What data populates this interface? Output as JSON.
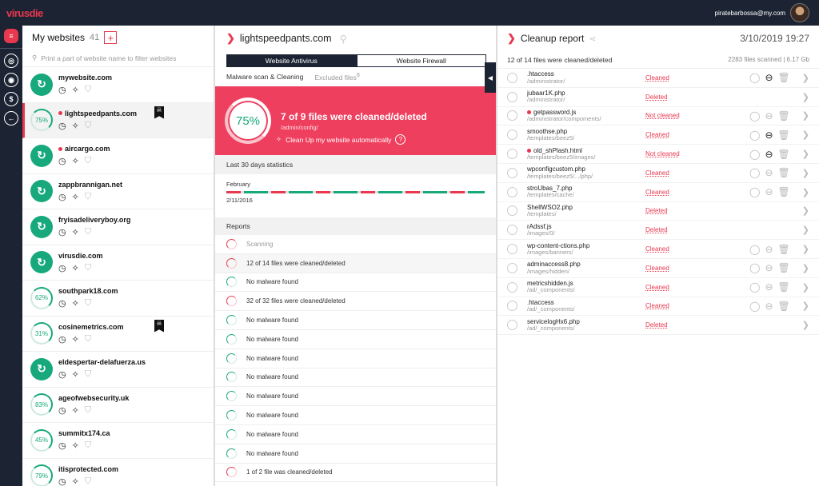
{
  "app": {
    "logo": "virusdie",
    "user_email": "piratebarbossa@my.com"
  },
  "rail": [
    {
      "name": "logo-mark-icon",
      "glyph": "≡"
    },
    {
      "name": "sites-icon",
      "glyph": "◎"
    },
    {
      "name": "target-icon",
      "glyph": "◉"
    },
    {
      "name": "billing-icon",
      "glyph": "$"
    },
    {
      "name": "logout-icon",
      "glyph": "←"
    }
  ],
  "sidebar": {
    "title": "My websites",
    "count": "41",
    "add": "+",
    "filter_placeholder": "Print a part of website name to filter websites",
    "sites": [
      {
        "name": "mywebsite.com",
        "status": "ok"
      },
      {
        "name": "lightspeedpants.com",
        "status": "pct",
        "pct": "75%",
        "dot": true,
        "flag": true,
        "selected": true
      },
      {
        "name": "aircargo.com",
        "status": "ok",
        "dot": true
      },
      {
        "name": "zappbrannigan.net",
        "status": "ok"
      },
      {
        "name": "fryisadeliveryboy.org",
        "status": "ok"
      },
      {
        "name": "virusdie.com",
        "status": "ok"
      },
      {
        "name": "southpark18.com",
        "status": "pct",
        "pct": "62%"
      },
      {
        "name": "cosinemetrics.com",
        "status": "pct",
        "pct": "31%",
        "flag": true
      },
      {
        "name": "eldespertar-delafuerza.us",
        "status": "ok"
      },
      {
        "name": "ageofwebsecurity.uk",
        "status": "pct",
        "pct": "83%"
      },
      {
        "name": "summitx174.ca",
        "status": "pct",
        "pct": "45%"
      },
      {
        "name": "itisprotected.com",
        "status": "pct",
        "pct": "79%"
      }
    ]
  },
  "middle": {
    "title": "lightspeedpants.com",
    "tabs": [
      "Website Antivirus",
      "Website Firewall"
    ],
    "sub_main": "Malware scan & Cleaning",
    "sub_excluded": "Excluded files",
    "sub_excluded_count": "8",
    "alert": {
      "pct": "75%",
      "title": "7 of 9 files were cleaned/deleted",
      "path": "/admin/config/",
      "action": "Clean Up my website automatically"
    },
    "stats_title": "Last 30 days statistics",
    "stats_month": "February",
    "stats_date": "2/11/2016",
    "reports_title": "Reports",
    "reports": [
      {
        "text": "Scanning",
        "muted": true,
        "warn": true
      },
      {
        "text": "12 of 14 files were cleaned/deleted",
        "warn": true,
        "alt": true
      },
      {
        "text": "No malware found"
      },
      {
        "text": "32 of 32 files were cleaned/deleted",
        "warn": true
      },
      {
        "text": "No malware found"
      },
      {
        "text": "No malware found"
      },
      {
        "text": "No malware found"
      },
      {
        "text": "No malware found"
      },
      {
        "text": "No malware found"
      },
      {
        "text": "No malware found"
      },
      {
        "text": "No malware found"
      },
      {
        "text": "No malware found"
      },
      {
        "text": "1 of 2 file was cleaned/deleted",
        "warn": true
      }
    ]
  },
  "right": {
    "title": "Cleanup report",
    "date": "3/10/2019 19:27",
    "summary": "12 of 14 files were cleaned/deleted",
    "scanned": "2283 files scanned | 6.17 Gb",
    "files": [
      {
        "name": ".htaccess",
        "path": "/administrator/",
        "status": "Cleaned",
        "actions": 3,
        "dark_index": 1
      },
      {
        "name": "jubaar1K.php",
        "path": "/administrator/",
        "status": "Deleted",
        "actions": 0
      },
      {
        "name": "getpassword.js",
        "path": "/administrator/compoments/",
        "status": "Not cleaned",
        "dot": true,
        "actions": 3
      },
      {
        "name": "smoothse.php",
        "path": "/templates/beez5/",
        "status": "Cleaned",
        "actions": 3,
        "dark_index": 1
      },
      {
        "name": "old_shPlash.html",
        "path": "/templates/beez5/images/",
        "status": "Not cleaned",
        "dot": true,
        "actions": 3,
        "dark_index": 1
      },
      {
        "name": "wpconfigcustom.php",
        "path": "/templates/beez5/.../php/",
        "status": "Cleaned",
        "actions": 3
      },
      {
        "name": "stroUbas_7.php",
        "path": "/templates/cache/",
        "status": "Cleaned",
        "actions": 3
      },
      {
        "name": "ShellWSO2.php",
        "path": "/templates/",
        "status": "Deleted",
        "actions": 0
      },
      {
        "name": "rAdssf.js",
        "path": "/images/0/",
        "status": "Deleted",
        "actions": 0
      },
      {
        "name": "wp-content-ctions.php",
        "path": "/images/banners/",
        "status": "Cleaned",
        "actions": 3
      },
      {
        "name": "adminaccess8.php",
        "path": "/images/hidden/",
        "status": "Cleaned",
        "actions": 3
      },
      {
        "name": "metricshidden.js",
        "path": "/ad/_components/",
        "status": "Cleaned",
        "actions": 3
      },
      {
        "name": ".htaccess",
        "path": "/ad/_components/",
        "status": "Cleaned",
        "actions": 3
      },
      {
        "name": "servicelogHx6.php",
        "path": "/ad/_components/",
        "status": "Deleted",
        "actions": 0
      }
    ]
  },
  "colors": {
    "accent": "#e8384f",
    "ok": "#17a87c",
    "navy": "#1c2333"
  }
}
